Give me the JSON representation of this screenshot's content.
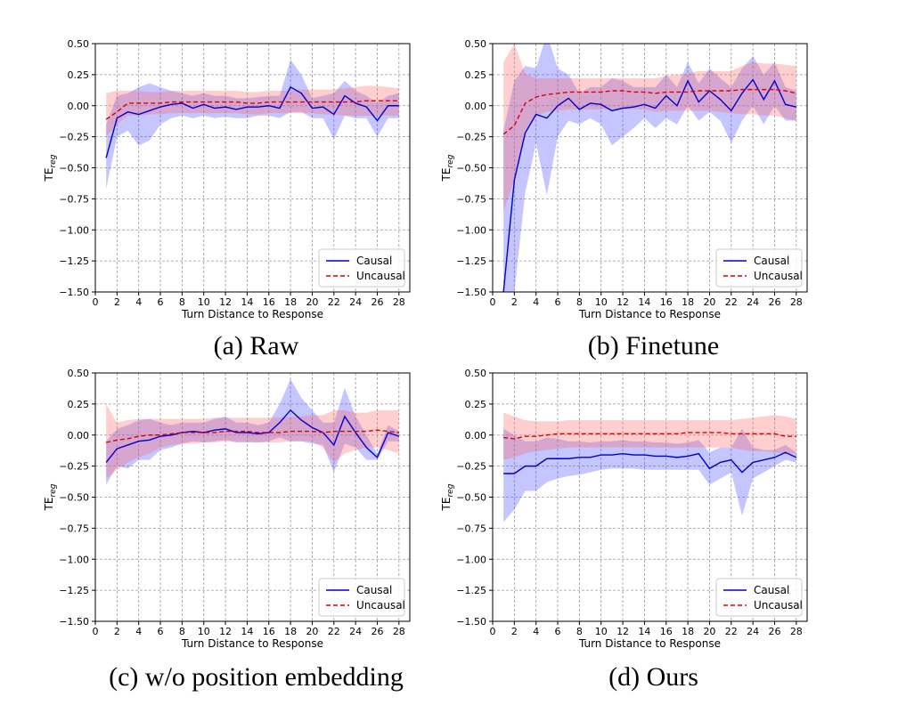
{
  "chart_data": [
    {
      "type": "line",
      "caption": "(a) Raw",
      "xlabel": "Turn Distance to Response",
      "ylabel_main": "TE",
      "ylabel_sub": "reg",
      "xlim": [
        0,
        29
      ],
      "ylim": [
        -1.5,
        0.5
      ],
      "xticks": [
        0,
        2,
        4,
        6,
        8,
        10,
        12,
        14,
        16,
        18,
        20,
        22,
        24,
        26,
        28
      ],
      "yticks": [
        0.5,
        0.25,
        0.0,
        -0.25,
        -0.5,
        -0.75,
        -1.0,
        -1.25,
        -1.5
      ],
      "ytick_labels": [
        "0.50",
        "0.25",
        "0.00",
        "−0.25",
        "−0.50",
        "−0.75",
        "−1.00",
        "−1.25",
        "−1.50"
      ],
      "legend": [
        "Causal",
        "Uncausal"
      ],
      "legend_position": "lower right",
      "grid": true,
      "x": [
        1,
        2,
        3,
        4,
        5,
        6,
        7,
        8,
        9,
        10,
        11,
        12,
        13,
        14,
        15,
        16,
        17,
        18,
        19,
        20,
        21,
        22,
        23,
        24,
        25,
        26,
        27,
        28
      ],
      "series": [
        {
          "name": "Causal",
          "values": [
            -0.42,
            -0.1,
            -0.05,
            -0.07,
            -0.04,
            -0.01,
            0.01,
            0.02,
            -0.02,
            0.01,
            -0.02,
            -0.01,
            -0.03,
            -0.01,
            -0.01,
            0.0,
            -0.02,
            0.15,
            0.1,
            -0.02,
            -0.01,
            -0.07,
            0.08,
            0.02,
            -0.01,
            -0.12,
            0.0,
            0.0
          ],
          "lower": [
            -0.67,
            -0.25,
            -0.2,
            -0.32,
            -0.28,
            -0.15,
            -0.1,
            -0.08,
            -0.1,
            -0.08,
            -0.1,
            -0.09,
            -0.1,
            -0.1,
            -0.08,
            -0.08,
            -0.1,
            -0.05,
            -0.05,
            -0.1,
            -0.1,
            -0.27,
            -0.08,
            -0.1,
            -0.1,
            -0.25,
            -0.1,
            -0.1
          ],
          "upper": [
            -0.15,
            0.08,
            0.1,
            0.15,
            0.18,
            0.15,
            0.12,
            0.1,
            0.08,
            0.1,
            0.08,
            0.08,
            0.06,
            0.06,
            0.07,
            0.08,
            0.08,
            0.37,
            0.25,
            0.06,
            0.08,
            0.1,
            0.2,
            0.12,
            0.08,
            0.02,
            0.08,
            0.1
          ]
        },
        {
          "name": "Uncausal",
          "values": [
            -0.11,
            -0.05,
            0.02,
            0.02,
            0.02,
            0.02,
            0.03,
            0.03,
            0.03,
            0.03,
            0.03,
            0.03,
            0.03,
            0.02,
            0.02,
            0.03,
            0.03,
            0.03,
            0.03,
            0.03,
            0.03,
            0.03,
            0.03,
            0.03,
            0.04,
            0.04,
            0.04,
            0.04
          ],
          "lower": [
            -0.25,
            -0.15,
            -0.08,
            -0.08,
            -0.07,
            -0.07,
            -0.06,
            -0.06,
            -0.06,
            -0.06,
            -0.06,
            -0.06,
            -0.06,
            -0.07,
            -0.07,
            -0.06,
            -0.06,
            -0.06,
            -0.06,
            -0.06,
            -0.07,
            -0.07,
            -0.08,
            -0.08,
            -0.08,
            -0.08,
            -0.08,
            -0.08
          ],
          "upper": [
            0.1,
            0.12,
            0.12,
            0.12,
            0.11,
            0.11,
            0.12,
            0.12,
            0.12,
            0.12,
            0.12,
            0.12,
            0.12,
            0.11,
            0.11,
            0.12,
            0.12,
            0.12,
            0.13,
            0.13,
            0.13,
            0.13,
            0.14,
            0.15,
            0.16,
            0.16,
            0.15,
            0.14
          ]
        }
      ]
    },
    {
      "type": "line",
      "caption": "(b) Finetune",
      "xlabel": "Turn Distance to Response",
      "ylabel_main": "TE",
      "ylabel_sub": "reg",
      "xlim": [
        0,
        29
      ],
      "ylim": [
        -1.5,
        0.5
      ],
      "xticks": [
        0,
        2,
        4,
        6,
        8,
        10,
        12,
        14,
        16,
        18,
        20,
        22,
        24,
        26,
        28
      ],
      "yticks": [
        0.5,
        0.25,
        0.0,
        -0.25,
        -0.5,
        -0.75,
        -1.0,
        -1.25,
        -1.5
      ],
      "ytick_labels": [
        "0.50",
        "0.25",
        "0.00",
        "−0.25",
        "−0.50",
        "−0.75",
        "−1.00",
        "−1.25",
        "−1.50"
      ],
      "legend": [
        "Causal",
        "Uncausal"
      ],
      "legend_position": "lower right",
      "grid": true,
      "x": [
        1,
        2,
        3,
        4,
        5,
        6,
        7,
        8,
        9,
        10,
        11,
        12,
        13,
        14,
        15,
        16,
        17,
        18,
        19,
        20,
        21,
        22,
        23,
        24,
        25,
        26,
        27,
        28
      ],
      "series": [
        {
          "name": "Causal",
          "values": [
            -1.5,
            -0.6,
            -0.22,
            -0.07,
            -0.1,
            0.0,
            0.06,
            -0.03,
            0.02,
            0.01,
            -0.04,
            -0.02,
            -0.01,
            0.01,
            -0.02,
            0.08,
            0.0,
            0.2,
            0.03,
            0.12,
            0.05,
            -0.04,
            0.1,
            0.21,
            0.05,
            0.2,
            0.01,
            -0.01
          ],
          "lower": [
            -1.5,
            -1.5,
            -0.7,
            -0.3,
            -0.72,
            -0.25,
            -0.12,
            -0.15,
            -0.1,
            -0.15,
            -0.32,
            -0.25,
            -0.18,
            -0.1,
            -0.18,
            -0.1,
            -0.15,
            0.0,
            -0.12,
            -0.05,
            -0.12,
            -0.3,
            -0.12,
            0.0,
            -0.15,
            0.0,
            -0.12,
            -0.12
          ],
          "upper": [
            -0.2,
            0.2,
            0.32,
            0.3,
            0.58,
            0.3,
            0.25,
            0.1,
            0.15,
            0.15,
            0.22,
            0.2,
            0.15,
            0.15,
            0.15,
            0.25,
            0.15,
            0.35,
            0.18,
            0.3,
            0.22,
            0.15,
            0.3,
            0.4,
            0.25,
            0.35,
            0.15,
            0.12
          ]
        },
        {
          "name": "Uncausal",
          "values": [
            -0.23,
            -0.16,
            0.02,
            0.07,
            0.09,
            0.1,
            0.11,
            0.11,
            0.11,
            0.11,
            0.12,
            0.12,
            0.11,
            0.11,
            0.1,
            0.11,
            0.11,
            0.11,
            0.12,
            0.12,
            0.12,
            0.12,
            0.13,
            0.13,
            0.13,
            0.13,
            0.12,
            0.1
          ],
          "lower": [
            -0.85,
            -0.6,
            -0.2,
            -0.08,
            -0.05,
            -0.04,
            -0.03,
            -0.03,
            -0.03,
            -0.03,
            -0.03,
            -0.03,
            -0.03,
            -0.03,
            -0.05,
            -0.04,
            -0.04,
            -0.04,
            -0.04,
            -0.04,
            -0.05,
            -0.06,
            -0.07,
            -0.07,
            -0.08,
            -0.08,
            -0.1,
            -0.12
          ],
          "upper": [
            0.35,
            0.5,
            0.26,
            0.22,
            0.22,
            0.22,
            0.22,
            0.22,
            0.22,
            0.22,
            0.22,
            0.22,
            0.22,
            0.22,
            0.22,
            0.24,
            0.25,
            0.26,
            0.28,
            0.28,
            0.28,
            0.28,
            0.32,
            0.35,
            0.34,
            0.34,
            0.33,
            0.32
          ]
        }
      ]
    },
    {
      "type": "line",
      "caption": "(c) w/o position embedding",
      "xlabel": "Turn Distance to Response",
      "ylabel_main": "TE",
      "ylabel_sub": "reg",
      "xlim": [
        0,
        29
      ],
      "ylim": [
        -1.5,
        0.5
      ],
      "xticks": [
        0,
        2,
        4,
        6,
        8,
        10,
        12,
        14,
        16,
        18,
        20,
        22,
        24,
        26,
        28
      ],
      "yticks": [
        0.5,
        0.25,
        0.0,
        -0.25,
        -0.5,
        -0.75,
        -1.0,
        -1.25,
        -1.5
      ],
      "ytick_labels": [
        "0.50",
        "0.25",
        "0.00",
        "−0.25",
        "−0.50",
        "−0.75",
        "−1.00",
        "−1.25",
        "−1.50"
      ],
      "legend": [
        "Causal",
        "Uncausal"
      ],
      "legend_position": "lower right",
      "grid": true,
      "x": [
        1,
        2,
        3,
        4,
        5,
        6,
        7,
        8,
        9,
        10,
        11,
        12,
        13,
        14,
        15,
        16,
        17,
        18,
        19,
        20,
        21,
        22,
        23,
        24,
        25,
        26,
        27,
        28
      ],
      "series": [
        {
          "name": "Causal",
          "values": [
            -0.22,
            -0.11,
            -0.08,
            -0.05,
            -0.04,
            -0.01,
            0.0,
            0.02,
            0.03,
            0.02,
            0.04,
            0.05,
            0.02,
            0.02,
            0.01,
            0.02,
            0.1,
            0.2,
            0.12,
            0.06,
            0.02,
            -0.08,
            0.15,
            0.02,
            -0.1,
            -0.18,
            0.02,
            -0.01
          ],
          "lower": [
            -0.4,
            -0.25,
            -0.27,
            -0.2,
            -0.2,
            -0.12,
            -0.1,
            -0.07,
            -0.05,
            -0.06,
            -0.05,
            -0.04,
            -0.06,
            -0.06,
            -0.06,
            -0.05,
            -0.02,
            -0.05,
            -0.05,
            -0.07,
            -0.08,
            -0.3,
            -0.07,
            -0.1,
            -0.2,
            -0.2,
            -0.05,
            -0.05
          ],
          "upper": [
            -0.05,
            0.05,
            0.08,
            0.12,
            0.13,
            0.1,
            0.08,
            0.1,
            0.1,
            0.1,
            0.13,
            0.15,
            0.1,
            0.1,
            0.08,
            0.1,
            0.25,
            0.45,
            0.3,
            0.2,
            0.1,
            0.1,
            0.38,
            0.15,
            0.0,
            -0.15,
            0.08,
            0.03
          ]
        },
        {
          "name": "Uncausal",
          "values": [
            -0.06,
            -0.04,
            -0.03,
            -0.01,
            0.0,
            0.0,
            0.01,
            0.02,
            0.02,
            0.02,
            0.02,
            0.03,
            0.03,
            0.03,
            0.02,
            0.02,
            0.02,
            0.03,
            0.03,
            0.03,
            0.02,
            0.03,
            0.03,
            0.03,
            0.03,
            0.04,
            0.03,
            0.02
          ],
          "lower": [
            -0.35,
            -0.28,
            -0.22,
            -0.18,
            -0.15,
            -0.1,
            -0.08,
            -0.07,
            -0.07,
            -0.06,
            -0.06,
            -0.05,
            -0.05,
            -0.05,
            -0.06,
            -0.06,
            -0.06,
            -0.05,
            -0.05,
            -0.05,
            -0.1,
            -0.22,
            -0.15,
            -0.12,
            -0.1,
            -0.1,
            -0.12,
            -0.15
          ],
          "upper": [
            0.25,
            0.1,
            0.12,
            0.13,
            0.13,
            0.13,
            0.13,
            0.13,
            0.13,
            0.13,
            0.14,
            0.14,
            0.14,
            0.14,
            0.14,
            0.14,
            0.14,
            0.15,
            0.15,
            0.16,
            0.16,
            0.2,
            0.2,
            0.18,
            0.18,
            0.2,
            0.2,
            0.2
          ]
        }
      ]
    },
    {
      "type": "line",
      "caption": "(d) Ours",
      "xlabel": "Turn Distance to Response",
      "ylabel_main": "TE",
      "ylabel_sub": "reg",
      "xlim": [
        0,
        29
      ],
      "ylim": [
        -1.5,
        0.5
      ],
      "xticks": [
        0,
        2,
        4,
        6,
        8,
        10,
        12,
        14,
        16,
        18,
        20,
        22,
        24,
        26,
        28
      ],
      "yticks": [
        0.5,
        0.25,
        0.0,
        -0.25,
        -0.5,
        -0.75,
        -1.0,
        -1.25,
        -1.5
      ],
      "ytick_labels": [
        "0.50",
        "0.25",
        "0.00",
        "−0.25",
        "−0.50",
        "−0.75",
        "−1.00",
        "−1.25",
        "−1.50"
      ],
      "legend": [
        "Causal",
        "Uncausal"
      ],
      "legend_position": "lower right",
      "grid": true,
      "x": [
        1,
        2,
        3,
        4,
        5,
        6,
        7,
        8,
        9,
        10,
        11,
        12,
        13,
        14,
        15,
        16,
        17,
        18,
        19,
        20,
        21,
        22,
        23,
        24,
        25,
        26,
        27,
        28
      ],
      "series": [
        {
          "name": "Causal",
          "values": [
            -0.31,
            -0.31,
            -0.25,
            -0.25,
            -0.19,
            -0.19,
            -0.19,
            -0.18,
            -0.18,
            -0.16,
            -0.16,
            -0.15,
            -0.16,
            -0.16,
            -0.17,
            -0.17,
            -0.18,
            -0.17,
            -0.15,
            -0.27,
            -0.22,
            -0.2,
            -0.3,
            -0.22,
            -0.2,
            -0.18,
            -0.14,
            -0.18
          ],
          "lower": [
            -0.7,
            -0.6,
            -0.45,
            -0.45,
            -0.38,
            -0.35,
            -0.33,
            -0.32,
            -0.3,
            -0.28,
            -0.27,
            -0.27,
            -0.27,
            -0.28,
            -0.28,
            -0.28,
            -0.28,
            -0.28,
            -0.28,
            -0.4,
            -0.35,
            -0.3,
            -0.65,
            -0.35,
            -0.3,
            -0.25,
            -0.2,
            -0.22
          ],
          "upper": [
            0.05,
            0.0,
            -0.05,
            -0.05,
            -0.02,
            -0.03,
            -0.05,
            -0.05,
            -0.06,
            -0.05,
            -0.05,
            -0.04,
            -0.05,
            -0.05,
            -0.06,
            -0.06,
            -0.07,
            -0.06,
            -0.04,
            -0.14,
            -0.1,
            -0.1,
            0.05,
            -0.1,
            -0.12,
            -0.12,
            -0.08,
            -0.14
          ]
        },
        {
          "name": "Uncausal",
          "values": [
            -0.02,
            -0.03,
            -0.01,
            -0.01,
            0.0,
            0.01,
            0.01,
            0.01,
            0.01,
            0.01,
            0.01,
            0.01,
            0.01,
            0.01,
            0.01,
            0.01,
            0.01,
            0.02,
            0.02,
            0.02,
            0.02,
            0.01,
            0.01,
            0.01,
            0.01,
            0.01,
            -0.01,
            -0.01
          ],
          "lower": [
            -0.2,
            -0.18,
            -0.15,
            -0.13,
            -0.12,
            -0.11,
            -0.1,
            -0.1,
            -0.1,
            -0.1,
            -0.1,
            -0.1,
            -0.1,
            -0.1,
            -0.1,
            -0.1,
            -0.1,
            -0.1,
            -0.1,
            -0.1,
            -0.1,
            -0.1,
            -0.12,
            -0.13,
            -0.13,
            -0.14,
            -0.15,
            -0.15
          ],
          "upper": [
            0.18,
            0.15,
            0.12,
            0.11,
            0.11,
            0.11,
            0.12,
            0.12,
            0.12,
            0.12,
            0.12,
            0.12,
            0.12,
            0.12,
            0.12,
            0.12,
            0.12,
            0.12,
            0.12,
            0.12,
            0.12,
            0.12,
            0.13,
            0.14,
            0.15,
            0.16,
            0.15,
            0.13
          ]
        }
      ]
    }
  ],
  "colors": {
    "causal": "#0000cc",
    "causal_fill": "#4040ff",
    "uncausal": "#dd0000",
    "uncausal_fill": "#ff6060",
    "grid": "#9a9a9a"
  }
}
